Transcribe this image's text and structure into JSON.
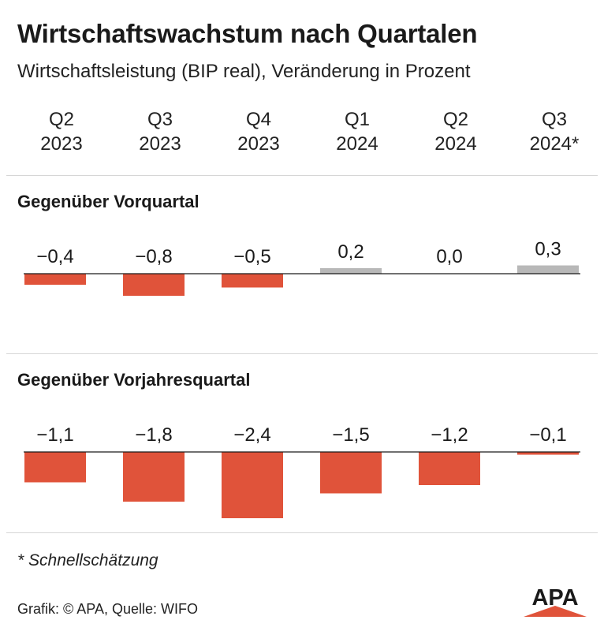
{
  "title": "Wirtschaftswachstum nach Quartalen",
  "subtitle": "Wirtschaftsleistung (BIP real), Veränderung in Prozent",
  "quarters": [
    {
      "q": "Q2",
      "year": "2023"
    },
    {
      "q": "Q3",
      "year": "2023"
    },
    {
      "q": "Q4",
      "year": "2023"
    },
    {
      "q": "Q1",
      "year": "2024"
    },
    {
      "q": "Q2",
      "year": "2024"
    },
    {
      "q": "Q3",
      "year": "2024*"
    }
  ],
  "colors": {
    "negative": "#e0533a",
    "positive": "#b8b8b8",
    "baseline": "#1a1a1a"
  },
  "chart_data": [
    {
      "type": "bar",
      "title": "Gegenüber Vorquartal",
      "categories": [
        "Q2 2023",
        "Q3 2023",
        "Q4 2023",
        "Q1 2024",
        "Q2 2024",
        "Q3 2024*"
      ],
      "values": [
        -0.4,
        -0.8,
        -0.5,
        0.2,
        0.0,
        0.3
      ],
      "labels": [
        "−0,4",
        "−0,8",
        "−0,5",
        "0,2",
        "0,0",
        "0,3"
      ]
    },
    {
      "type": "bar",
      "title": "Gegenüber Vorjahresquartal",
      "categories": [
        "Q2 2023",
        "Q3 2023",
        "Q4 2023",
        "Q1 2024",
        "Q2 2024",
        "Q3 2024*"
      ],
      "values": [
        -1.1,
        -1.8,
        -2.4,
        -1.5,
        -1.2,
        -0.1
      ],
      "labels": [
        "−1,1",
        "−1,8",
        "−2,4",
        "−1,5",
        "−1,2",
        "−0,1"
      ]
    }
  ],
  "footnote": "* Schnellschätzung",
  "credit": "Grafik: © APA, Quelle: WIFO",
  "logo_text": "APA"
}
